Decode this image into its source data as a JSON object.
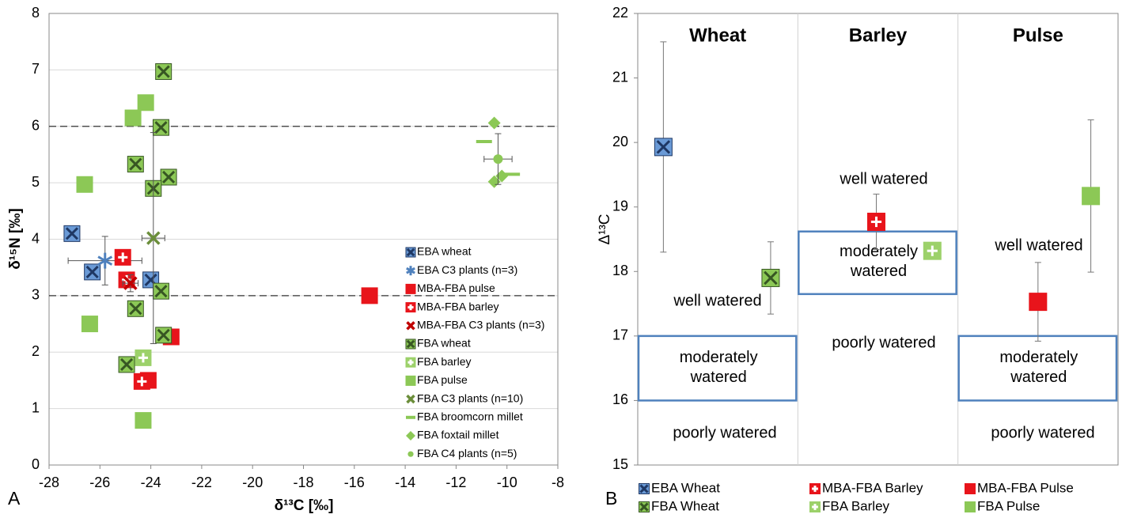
{
  "chart_data": [
    {
      "type": "scatter",
      "panel_label": "A",
      "xlabel": "δ¹³C [‰]",
      "ylabel": "δ¹⁵N [‰]",
      "xlim": [
        -28,
        -8
      ],
      "xticks": [
        -28,
        -26,
        -24,
        -22,
        -20,
        -18,
        -16,
        -14,
        -12,
        -10,
        -8
      ],
      "ylim": [
        0,
        8
      ],
      "yticks": [
        0,
        1,
        2,
        3,
        4,
        5,
        6,
        7,
        8
      ],
      "grid": true,
      "hlines": [
        3,
        6
      ],
      "legend": "lower right",
      "series": [
        {
          "name": "EBA wheat",
          "marker": "square-x",
          "color": "#6a9ad6",
          "accent": "#1f3864",
          "x": [
            -27.1,
            -26.3,
            -24.0
          ],
          "y": [
            4.1,
            3.42,
            3.28
          ]
        },
        {
          "name": "EBA C3 plants (n=3)",
          "marker": "asterisk",
          "color": "#4f81bd",
          "x": [
            -25.8
          ],
          "y": [
            3.62
          ],
          "xerr": [
            1.45
          ],
          "yerr": [
            0.43
          ]
        },
        {
          "name": "MBA-FBA pulse",
          "marker": "square",
          "color": "#e8141b",
          "x": [
            -15.4,
            -23.2,
            -24.1
          ],
          "y": [
            3.0,
            2.27,
            1.5
          ]
        },
        {
          "name": "MBA-FBA barley",
          "marker": "square-plus",
          "color": "#e8141b",
          "x": [
            -25.1,
            -24.95,
            -24.35
          ],
          "y": [
            3.68,
            3.28,
            1.48
          ]
        },
        {
          "name": "MBA-FBA C3 plants (n=3)",
          "marker": "x",
          "color": "#c00000",
          "x": [
            -24.8
          ],
          "y": [
            3.22
          ],
          "xerr": [
            0.3
          ],
          "yerr": [
            0.15
          ]
        },
        {
          "name": "FBA wheat",
          "marker": "square-x",
          "color": "#8cc856",
          "accent": "#375623",
          "x": [
            -23.5,
            -23.6,
            -24.6,
            -23.3,
            -23.9,
            -23.6,
            -24.6,
            -23.5,
            -24.95
          ],
          "y": [
            6.97,
            5.98,
            5.33,
            5.1,
            4.9,
            3.08,
            2.77,
            2.3,
            1.78
          ]
        },
        {
          "name": "FBA barley",
          "marker": "square-plus",
          "color": "#9cd16a",
          "x": [
            -24.3
          ],
          "y": [
            1.9
          ]
        },
        {
          "name": "FBA pulse",
          "marker": "square",
          "color": "#8cc856",
          "x": [
            -24.2,
            -24.7,
            -26.6,
            -26.4,
            -24.3
          ],
          "y": [
            6.42,
            6.15,
            4.97,
            2.5,
            0.79
          ]
        },
        {
          "name": "FBA C3 plants (n=10)",
          "marker": "x",
          "color": "#6b8e3a",
          "x": [
            -23.9
          ],
          "y": [
            4.02
          ],
          "xerr": [
            0.45
          ],
          "yerr": [
            1.87
          ]
        },
        {
          "name": "FBA broomcorn millet",
          "marker": "dash",
          "color": "#8cc856",
          "x": [
            -10.9,
            -9.8
          ],
          "y": [
            5.73,
            5.15
          ]
        },
        {
          "name": "FBA foxtail millet",
          "marker": "diamond",
          "color": "#8cc856",
          "x": [
            -10.5,
            -10.5,
            -10.2
          ],
          "y": [
            6.06,
            5.02,
            5.12
          ]
        },
        {
          "name": "FBA C4 plants (n=5)",
          "marker": "circle",
          "color": "#8cc856",
          "x": [
            -10.35
          ],
          "y": [
            5.42
          ],
          "xerr": [
            0.55
          ],
          "yerr": [
            0.45
          ]
        }
      ]
    },
    {
      "type": "category-scatter",
      "panel_label": "B",
      "ylabel": "Δ¹³C",
      "categories": [
        "Wheat",
        "Barley",
        "Pulse"
      ],
      "ylim": [
        15,
        22
      ],
      "yticks": [
        15,
        16,
        17,
        18,
        19,
        20,
        21,
        22
      ],
      "series": [
        {
          "name": "EBA Wheat",
          "marker": "square-x",
          "color": "#6a9ad6",
          "accent": "#1f3864",
          "values": [
            19.93,
            null,
            null
          ],
          "errors": [
            1.63,
            null,
            null
          ]
        },
        {
          "name": "FBA Wheat",
          "marker": "square-x",
          "color": "#8cc856",
          "accent": "#375623",
          "values": [
            17.9,
            null,
            null
          ],
          "errors": [
            0.56,
            null,
            null
          ]
        },
        {
          "name": "MBA-FBA Barley",
          "marker": "square-plus",
          "color": "#e8141b",
          "values": [
            null,
            18.77,
            null
          ],
          "errors": [
            null,
            0.43,
            null
          ]
        },
        {
          "name": "FBA Barley",
          "marker": "square-plus",
          "color": "#9cd16a",
          "values": [
            null,
            18.32,
            null
          ]
        },
        {
          "name": "MBA-FBA Pulse",
          "marker": "square",
          "color": "#e8141b",
          "values": [
            null,
            null,
            17.53
          ],
          "errors": [
            null,
            null,
            0.61
          ]
        },
        {
          "name": "FBA Pulse",
          "marker": "square",
          "color": "#8cc856",
          "values": [
            null,
            null,
            19.17
          ],
          "errors": [
            null,
            null,
            1.18
          ]
        }
      ],
      "zones": [
        {
          "range": [
            16,
            17
          ],
          "well": "well watered",
          "moderate": "moderately watered",
          "poor": "poorly watered"
        },
        {
          "range": [
            17.65,
            18.62
          ],
          "well": "well watered",
          "moderate": "moderately watered",
          "poor": "poorly watered"
        },
        {
          "range": [
            16,
            17
          ],
          "well": "well watered",
          "moderate": "moderately watered",
          "poor": "poorly watered"
        }
      ]
    }
  ]
}
